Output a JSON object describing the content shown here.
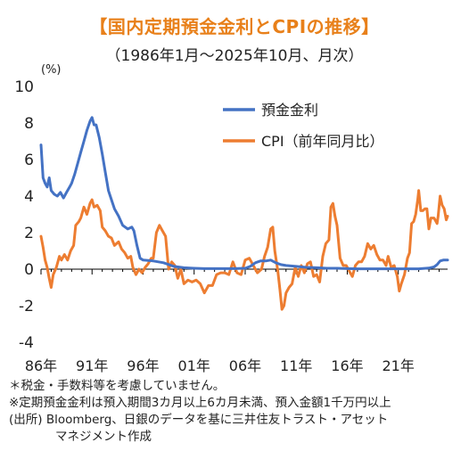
{
  "title": "【国内定期預金金利とCPIの推移】",
  "subtitle": "（1986年1月～2025年10月、月次）",
  "notes": [
    "＊税金・手数料等を考慮していません。",
    "※定期預金金利は預入期間3カ月以上6カ月未満、預入金額1千万円以上",
    "(出所) Bloomberg、日銀のデータを基に三井住友トラスト・アセット",
    "マネジメント作成"
  ],
  "colors": {
    "deposit": "#4472c4",
    "cpi": "#ed7d31",
    "title": "#e8801a"
  },
  "chart_data": {
    "type": "line",
    "title": "【国内定期預金金利とCPIの推移】",
    "subtitle": "（1986年1月～2025年10月、月次）",
    "y_unit_label": "(%)",
    "ylim": [
      -4,
      10
    ],
    "y_ticks": [
      -4,
      -2,
      0,
      2,
      4,
      6,
      8,
      10
    ],
    "xlim": [
      1986.0,
      2025.83
    ],
    "x_ticks": [
      1986,
      1991,
      1996,
      2001,
      2006,
      2011,
      2016,
      2021
    ],
    "x_tick_labels": [
      "86年",
      "91年",
      "96年",
      "01年",
      "06年",
      "11年",
      "16年",
      "21年"
    ],
    "legend_position": "top-right",
    "grid": false,
    "series": [
      {
        "name": "預金金利",
        "color": "#4472c4",
        "points": [
          [
            1986.0,
            6.8
          ],
          [
            1986.2,
            5.0
          ],
          [
            1986.4,
            4.7
          ],
          [
            1986.6,
            4.5
          ],
          [
            1986.8,
            5.0
          ],
          [
            1987.0,
            4.3
          ],
          [
            1987.3,
            4.1
          ],
          [
            1987.6,
            4.0
          ],
          [
            1987.9,
            4.2
          ],
          [
            1988.2,
            3.9
          ],
          [
            1988.5,
            4.2
          ],
          [
            1988.8,
            4.5
          ],
          [
            1989.0,
            4.7
          ],
          [
            1989.3,
            5.2
          ],
          [
            1989.6,
            5.8
          ],
          [
            1989.9,
            6.4
          ],
          [
            1990.2,
            7.0
          ],
          [
            1990.5,
            7.6
          ],
          [
            1990.8,
            8.1
          ],
          [
            1991.0,
            8.3
          ],
          [
            1991.2,
            7.9
          ],
          [
            1991.4,
            7.9
          ],
          [
            1991.7,
            7.2
          ],
          [
            1992.0,
            6.3
          ],
          [
            1992.3,
            5.3
          ],
          [
            1992.6,
            4.3
          ],
          [
            1992.9,
            3.8
          ],
          [
            1993.2,
            3.3
          ],
          [
            1993.6,
            2.9
          ],
          [
            1994.0,
            2.4
          ],
          [
            1994.5,
            2.2
          ],
          [
            1994.9,
            2.3
          ],
          [
            1995.1,
            2.1
          ],
          [
            1995.4,
            1.3
          ],
          [
            1995.7,
            0.6
          ],
          [
            1996.0,
            0.5
          ],
          [
            1997.0,
            0.45
          ],
          [
            1998.0,
            0.35
          ],
          [
            1999.0,
            0.15
          ],
          [
            2000.0,
            0.08
          ],
          [
            2001.0,
            0.05
          ],
          [
            2002.0,
            0.03
          ],
          [
            2003.0,
            0.03
          ],
          [
            2004.0,
            0.03
          ],
          [
            2005.0,
            0.03
          ],
          [
            2006.0,
            0.05
          ],
          [
            2006.5,
            0.15
          ],
          [
            2007.0,
            0.35
          ],
          [
            2007.5,
            0.45
          ],
          [
            2008.0,
            0.45
          ],
          [
            2008.5,
            0.5
          ],
          [
            2009.0,
            0.35
          ],
          [
            2009.5,
            0.25
          ],
          [
            2010.0,
            0.2
          ],
          [
            2011.0,
            0.15
          ],
          [
            2012.0,
            0.1
          ],
          [
            2013.0,
            0.08
          ],
          [
            2014.0,
            0.05
          ],
          [
            2015.0,
            0.05
          ],
          [
            2016.0,
            0.03
          ],
          [
            2017.0,
            0.02
          ],
          [
            2018.0,
            0.02
          ],
          [
            2019.0,
            0.02
          ],
          [
            2020.0,
            0.02
          ],
          [
            2021.0,
            0.02
          ],
          [
            2022.0,
            0.02
          ],
          [
            2023.0,
            0.02
          ],
          [
            2024.0,
            0.06
          ],
          [
            2024.5,
            0.12
          ],
          [
            2024.8,
            0.25
          ],
          [
            2025.1,
            0.45
          ],
          [
            2025.4,
            0.5
          ],
          [
            2025.83,
            0.5
          ]
        ]
      },
      {
        "name": "CPI（前年同月比）",
        "color": "#ed7d31",
        "points": [
          [
            1986.0,
            1.8
          ],
          [
            1986.2,
            1.2
          ],
          [
            1986.4,
            0.5
          ],
          [
            1986.6,
            0.1
          ],
          [
            1986.8,
            -0.5
          ],
          [
            1987.0,
            -1.0
          ],
          [
            1987.2,
            -0.3
          ],
          [
            1987.5,
            0.1
          ],
          [
            1987.8,
            0.7
          ],
          [
            1988.0,
            0.5
          ],
          [
            1988.3,
            0.8
          ],
          [
            1988.6,
            0.5
          ],
          [
            1988.9,
            1.0
          ],
          [
            1989.2,
            1.3
          ],
          [
            1989.4,
            2.4
          ],
          [
            1989.7,
            2.6
          ],
          [
            1989.9,
            2.8
          ],
          [
            1990.2,
            3.4
          ],
          [
            1990.5,
            3.0
          ],
          [
            1990.8,
            3.6
          ],
          [
            1991.0,
            3.8
          ],
          [
            1991.2,
            3.4
          ],
          [
            1991.5,
            3.5
          ],
          [
            1991.8,
            3.2
          ],
          [
            1992.0,
            2.3
          ],
          [
            1992.3,
            2.1
          ],
          [
            1992.6,
            1.8
          ],
          [
            1992.9,
            1.7
          ],
          [
            1993.2,
            1.3
          ],
          [
            1993.6,
            1.5
          ],
          [
            1993.9,
            1.1
          ],
          [
            1994.2,
            0.9
          ],
          [
            1994.5,
            0.6
          ],
          [
            1994.8,
            0.7
          ],
          [
            1995.0,
            0.1
          ],
          [
            1995.3,
            -0.3
          ],
          [
            1995.6,
            0.0
          ],
          [
            1995.9,
            -0.2
          ],
          [
            1996.2,
            0.1
          ],
          [
            1996.5,
            0.3
          ],
          [
            1996.8,
            0.6
          ],
          [
            1997.0,
            0.6
          ],
          [
            1997.3,
            2.0
          ],
          [
            1997.6,
            2.4
          ],
          [
            1997.9,
            2.1
          ],
          [
            1998.2,
            1.8
          ],
          [
            1998.5,
            0.0
          ],
          [
            1998.8,
            0.4
          ],
          [
            1999.1,
            0.2
          ],
          [
            1999.4,
            -0.5
          ],
          [
            1999.7,
            0.0
          ],
          [
            2000.0,
            -0.8
          ],
          [
            2000.4,
            -0.6
          ],
          [
            2000.8,
            -0.7
          ],
          [
            2001.2,
            -0.6
          ],
          [
            2001.6,
            -0.8
          ],
          [
            2002.0,
            -1.3
          ],
          [
            2002.4,
            -0.9
          ],
          [
            2002.8,
            -0.9
          ],
          [
            2003.2,
            -0.3
          ],
          [
            2003.6,
            -0.2
          ],
          [
            2004.0,
            -0.2
          ],
          [
            2004.4,
            -0.3
          ],
          [
            2004.8,
            0.4
          ],
          [
            2005.2,
            -0.2
          ],
          [
            2005.6,
            -0.3
          ],
          [
            2006.0,
            0.5
          ],
          [
            2006.4,
            0.6
          ],
          [
            2006.8,
            0.2
          ],
          [
            2007.2,
            -0.2
          ],
          [
            2007.6,
            0.0
          ],
          [
            2007.9,
            0.7
          ],
          [
            2008.2,
            1.2
          ],
          [
            2008.5,
            2.2
          ],
          [
            2008.7,
            2.3
          ],
          [
            2008.9,
            1.0
          ],
          [
            2009.2,
            -0.1
          ],
          [
            2009.4,
            -1.1
          ],
          [
            2009.6,
            -2.2
          ],
          [
            2009.8,
            -2.0
          ],
          [
            2010.0,
            -1.3
          ],
          [
            2010.3,
            -1.0
          ],
          [
            2010.6,
            -0.8
          ],
          [
            2010.9,
            0.1
          ],
          [
            2011.2,
            -0.4
          ],
          [
            2011.5,
            0.2
          ],
          [
            2011.8,
            -0.2
          ],
          [
            2012.1,
            0.3
          ],
          [
            2012.4,
            0.4
          ],
          [
            2012.7,
            -0.4
          ],
          [
            2013.0,
            -0.3
          ],
          [
            2013.3,
            -0.7
          ],
          [
            2013.6,
            0.7
          ],
          [
            2013.9,
            1.4
          ],
          [
            2014.2,
            1.6
          ],
          [
            2014.4,
            3.4
          ],
          [
            2014.6,
            3.6
          ],
          [
            2014.8,
            2.9
          ],
          [
            2015.0,
            2.4
          ],
          [
            2015.3,
            0.6
          ],
          [
            2015.6,
            0.2
          ],
          [
            2015.9,
            0.2
          ],
          [
            2016.2,
            -0.1
          ],
          [
            2016.5,
            -0.4
          ],
          [
            2016.8,
            0.2
          ],
          [
            2017.1,
            0.4
          ],
          [
            2017.4,
            0.4
          ],
          [
            2017.7,
            0.7
          ],
          [
            2018.0,
            1.4
          ],
          [
            2018.3,
            1.1
          ],
          [
            2018.6,
            1.3
          ],
          [
            2018.9,
            0.8
          ],
          [
            2019.2,
            0.5
          ],
          [
            2019.5,
            0.5
          ],
          [
            2019.8,
            0.2
          ],
          [
            2020.0,
            0.7
          ],
          [
            2020.3,
            0.1
          ],
          [
            2020.6,
            0.2
          ],
          [
            2020.9,
            -0.4
          ],
          [
            2021.1,
            -1.2
          ],
          [
            2021.3,
            -0.8
          ],
          [
            2021.6,
            -0.3
          ],
          [
            2021.9,
            0.6
          ],
          [
            2022.1,
            0.9
          ],
          [
            2022.3,
            2.5
          ],
          [
            2022.5,
            2.6
          ],
          [
            2022.7,
            3.0
          ],
          [
            2022.9,
            3.8
          ],
          [
            2023.0,
            4.3
          ],
          [
            2023.2,
            3.2
          ],
          [
            2023.4,
            3.2
          ],
          [
            2023.6,
            3.3
          ],
          [
            2023.8,
            3.3
          ],
          [
            2024.0,
            2.2
          ],
          [
            2024.2,
            2.8
          ],
          [
            2024.5,
            2.8
          ],
          [
            2024.8,
            2.5
          ],
          [
            2024.9,
            2.9
          ],
          [
            2025.1,
            4.0
          ],
          [
            2025.3,
            3.5
          ],
          [
            2025.5,
            3.3
          ],
          [
            2025.7,
            2.7
          ],
          [
            2025.83,
            2.9
          ]
        ]
      }
    ]
  }
}
